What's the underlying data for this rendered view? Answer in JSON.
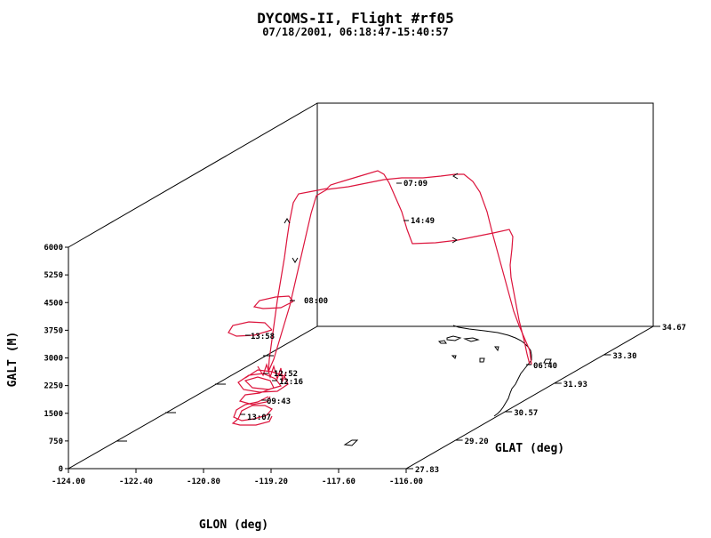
{
  "chart_data": {
    "type": "line",
    "projection": "3d",
    "title": "DYCOMS-II, Flight #rf05",
    "subtitle": "07/18/2001, 06:18:47-15:40:57",
    "xlabel": "GLON (deg)",
    "ylabel": "GLAT (deg)",
    "zlabel": "GALT (M)",
    "xlim": [
      -124.0,
      -116.0
    ],
    "ylim": [
      27.83,
      34.67
    ],
    "zlim": [
      0,
      6000
    ],
    "x_ticks": [
      "-124.00",
      "-122.40",
      "-120.80",
      "-119.20",
      "-117.60",
      "-116.00"
    ],
    "y_ticks": [
      "27.83",
      "29.20",
      "30.57",
      "31.93",
      "33.30",
      "34.67"
    ],
    "z_ticks": [
      "0",
      "750",
      "1500",
      "2250",
      "3000",
      "3750",
      "4500",
      "5250",
      "6000"
    ],
    "series_color": "#dc143c",
    "time_labels": [
      "06:40",
      "07:09",
      "08:00",
      "09:43",
      "12:16",
      "12:52",
      "13:07",
      "13:58",
      "14:49"
    ]
  }
}
